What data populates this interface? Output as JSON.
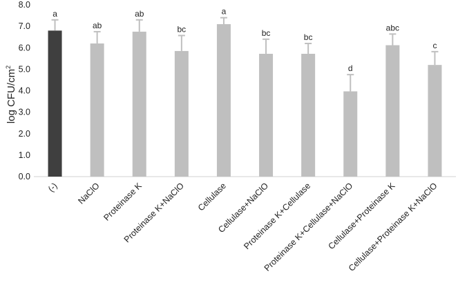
{
  "chart_data": {
    "type": "bar",
    "title": "",
    "xlabel": "",
    "ylabel": "log CFU/cm",
    "ylabel_superscript": "2",
    "ylim": [
      0,
      8
    ],
    "yticks": [
      "0.0",
      "1.0",
      "2.0",
      "3.0",
      "4.0",
      "5.0",
      "6.0",
      "7.0",
      "8.0"
    ],
    "grid": false,
    "categories": [
      "(-)",
      "NaClO",
      "Proteinase K",
      "Proteinase K+NaClO",
      "Cellulase",
      "Cellulase+NaClO",
      "Proteinase K+Cellulase",
      "Proteinase K+Cellulase+NaClO",
      "Cellulase+Proteinase K",
      "Cellulase+Proteinase K+NaClO"
    ],
    "values": [
      6.8,
      6.2,
      6.75,
      5.85,
      7.1,
      5.72,
      5.72,
      3.97,
      6.12,
      5.2
    ],
    "errors": [
      0.5,
      0.55,
      0.55,
      0.72,
      0.3,
      0.68,
      0.48,
      0.78,
      0.52,
      0.62
    ],
    "significance": [
      "a",
      "ab",
      "ab",
      "bc",
      "a",
      "bc",
      "bc",
      "d",
      "abc",
      "c"
    ],
    "colors": {
      "control": "#3f3f3f",
      "treatment": "#bfbfbf",
      "error_bar": "#bfbfbf",
      "axis": "#d0d0d0"
    }
  }
}
